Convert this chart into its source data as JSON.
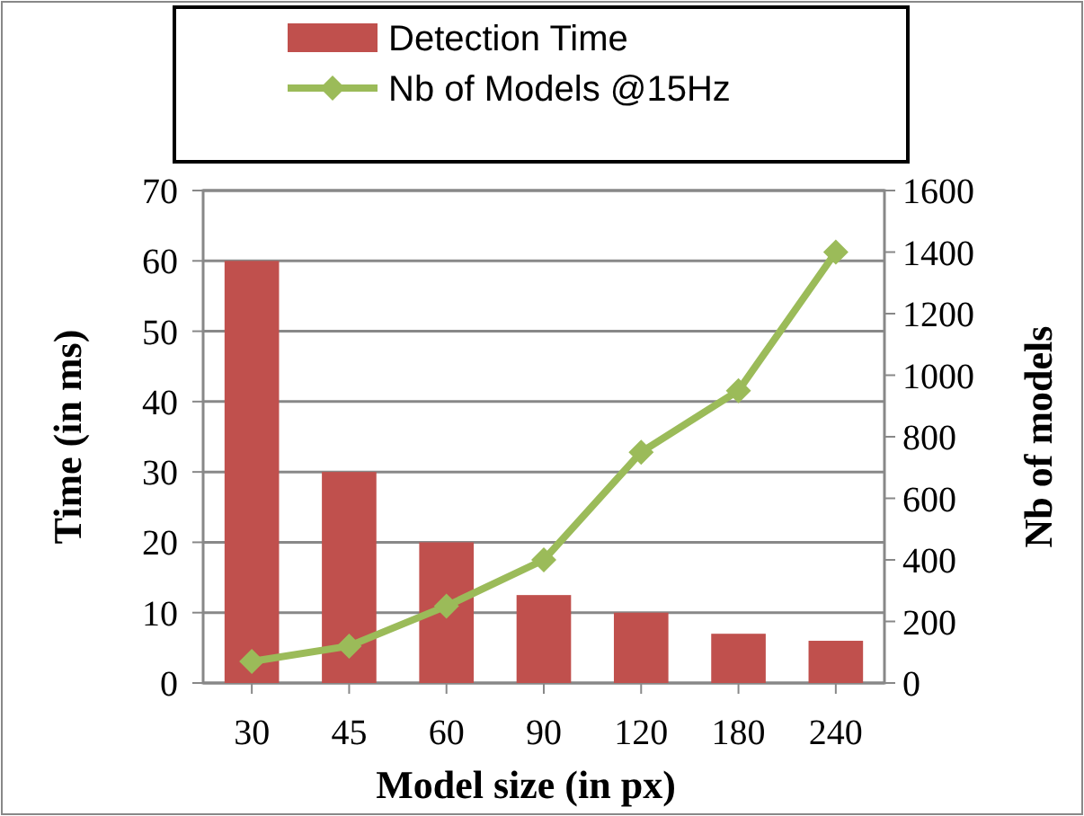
{
  "chart_data": {
    "type": "bar",
    "xlabel": "Model size (in px)",
    "ylabel": "Time (in ms)",
    "y2label": "Nb of models",
    "categories": [
      "30",
      "45",
      "60",
      "90",
      "120",
      "180",
      "240"
    ],
    "series": [
      {
        "name": "Detection Time",
        "color": "#c0504d",
        "values": [
          60,
          30,
          20,
          12.5,
          10,
          7,
          6
        ]
      },
      {
        "name": "Nb of Models @15Hz",
        "type": "line",
        "axis": "y2",
        "color": "#9bbb59",
        "marker": "diamond",
        "values": [
          70,
          120,
          250,
          400,
          750,
          950,
          1400
        ]
      }
    ],
    "ylim": [
      0,
      70
    ],
    "yticks": [
      0,
      10,
      20,
      30,
      40,
      50,
      60,
      70
    ],
    "y2lim": [
      0,
      1600
    ],
    "y2ticks": [
      0,
      200,
      400,
      600,
      800,
      1000,
      1200,
      1400,
      1600
    ],
    "grid": "y",
    "legend": "top"
  }
}
